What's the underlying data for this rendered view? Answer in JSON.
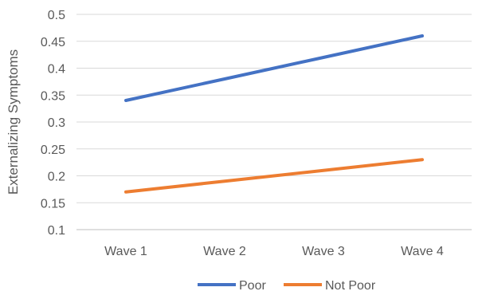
{
  "chart_data": {
    "type": "line",
    "title": "",
    "xlabel": "",
    "ylabel": "Externalizing Symptoms",
    "categories": [
      "Wave 1",
      "Wave 2",
      "Wave 3",
      "Wave 4"
    ],
    "ylim": [
      0.1,
      0.5
    ],
    "yticks": [
      "0.1",
      "0.15",
      "0.2",
      "0.25",
      "0.3",
      "0.35",
      "0.4",
      "0.45",
      "0.5"
    ],
    "grid": true,
    "legend_position": "bottom",
    "series": [
      {
        "name": "Poor",
        "values": [
          0.34,
          0.38,
          0.42,
          0.46
        ],
        "color": "#4472c4"
      },
      {
        "name": "Not Poor",
        "values": [
          0.17,
          0.19,
          0.21,
          0.23
        ],
        "color": "#ed7d31"
      }
    ]
  }
}
